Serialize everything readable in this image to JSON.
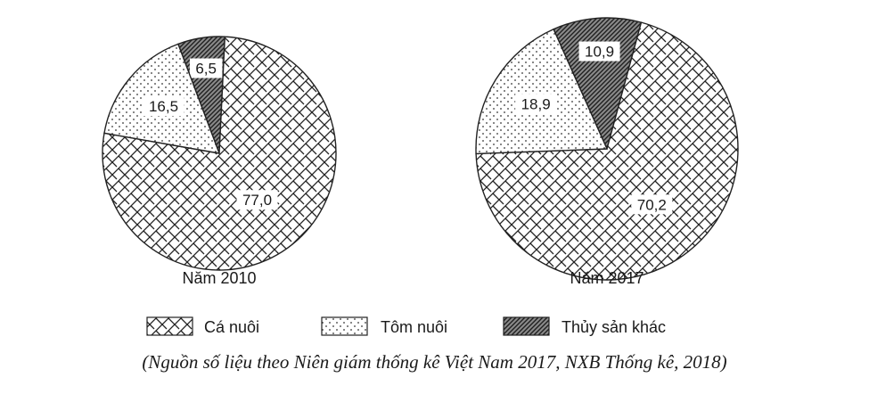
{
  "chart_data": {
    "type": "pie",
    "categories": [
      "Cá nuôi",
      "Tôm nuôi",
      "Thủy sản khác"
    ],
    "charts": [
      {
        "label": "Năm 2010",
        "values": [
          77.0,
          16.5,
          6.5
        ],
        "value_labels": [
          "77,0",
          "16,5",
          "6,5"
        ]
      },
      {
        "label": "Năm 2017",
        "values": [
          70.2,
          18.9,
          10.9
        ],
        "value_labels": [
          "70,2",
          "18,9",
          "10,9"
        ]
      }
    ],
    "legend": {
      "position": "bottom",
      "items": [
        {
          "label": "Cá nuôi",
          "pattern": "brick-crosshatch"
        },
        {
          "label": "Tôm nuôi",
          "pattern": "dots"
        },
        {
          "label": "Thủy sản khác",
          "pattern": "diagonal-hatch"
        }
      ]
    },
    "source": "(Nguồn số liệu theo Niên giám thống kê Việt Nam 2017, NXB Thống kê, 2018)"
  }
}
